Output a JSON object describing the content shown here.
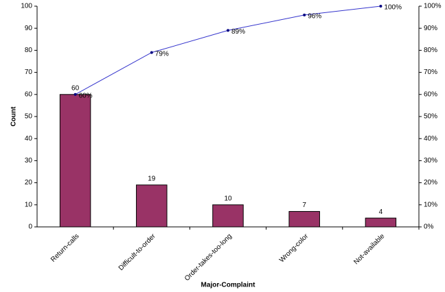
{
  "chart_data": {
    "type": "bar",
    "x_label": "Major-Complaint",
    "y_label": "Count",
    "categories": [
      "Return-calls",
      "Difficult-to-order",
      "Order-takes-too-long",
      "Wrong-color",
      "Not-available"
    ],
    "series": [
      {
        "type": "bar",
        "color": "#993366",
        "values": [
          60,
          19,
          10,
          7,
          4
        ]
      },
      {
        "type": "line",
        "axis": "y2",
        "color": "#3333cc",
        "values": [
          60,
          79,
          89,
          96,
          100
        ],
        "value_labels": [
          "60%",
          "79%",
          "89%",
          "96%",
          "100%"
        ]
      }
    ],
    "ylim": [
      0,
      100
    ],
    "yticks": [
      0,
      10,
      20,
      30,
      40,
      50,
      60,
      70,
      80,
      90,
      100
    ],
    "y2lim": [
      0,
      100
    ],
    "y2ticks": [
      {
        "value": 0,
        "label": "0%"
      },
      {
        "value": 10,
        "label": "10%"
      },
      {
        "value": 20,
        "label": "20%"
      },
      {
        "value": 30,
        "label": "30%"
      },
      {
        "value": 40,
        "label": "40%"
      },
      {
        "value": 50,
        "label": "50%"
      },
      {
        "value": 60,
        "label": "60%"
      },
      {
        "value": 70,
        "label": "70%"
      },
      {
        "value": 80,
        "label": "80%"
      },
      {
        "value": 90,
        "label": "90%"
      },
      {
        "value": 100,
        "label": "100%"
      }
    ]
  }
}
